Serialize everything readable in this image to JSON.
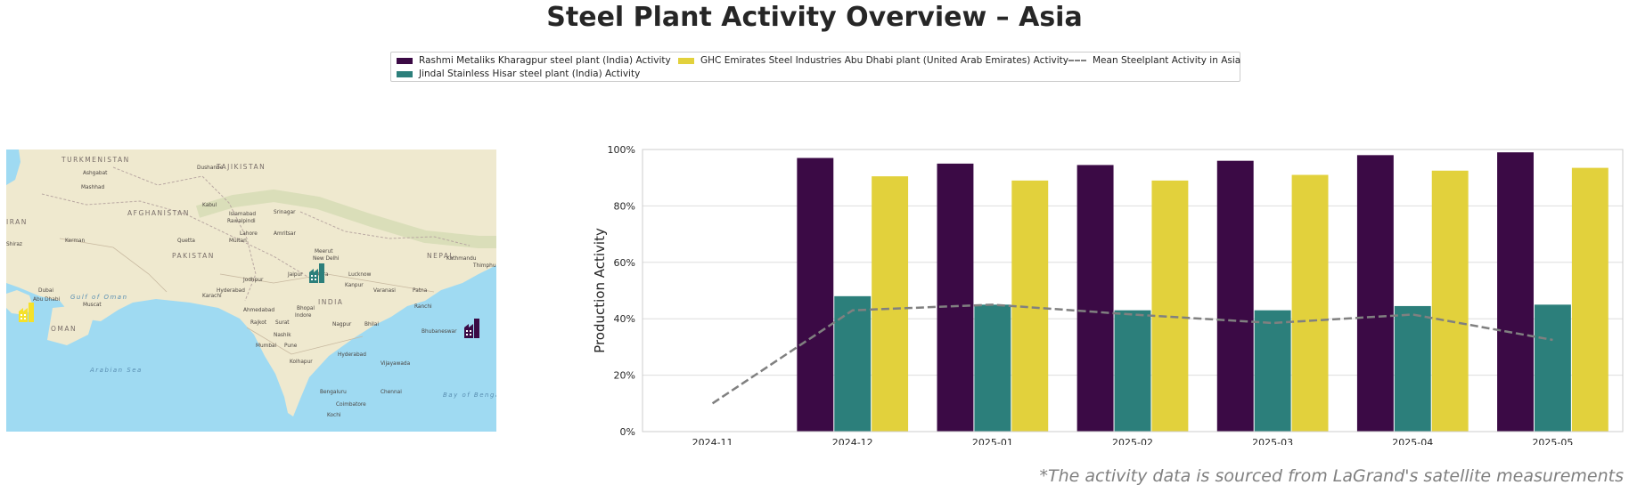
{
  "title": "Steel Plant Activity Overview – Asia",
  "footnote": "*The activity data is sourced from LaGrand's satellite measurements",
  "legend": {
    "items": [
      {
        "label": "Rashmi Metaliks Kharagpur steel plant (India) Activity",
        "color": "#3b0a45"
      },
      {
        "label": "Jindal Stainless Hisar steel plant (India) Activity",
        "color": "#2c7f7b"
      },
      {
        "label": "GHC Emirates Steel Industries Abu Dhabi plant (United Arab Emirates) Activity",
        "color": "#e2d13c"
      },
      {
        "label": "Mean Steelplant Activity in Asia",
        "color": "#808080"
      }
    ]
  },
  "map": {
    "labels": [
      {
        "text": "TURKMENISTAN",
        "kind": "country"
      },
      {
        "text": "Ashgabat",
        "kind": "city"
      },
      {
        "text": "Mashhad",
        "kind": "city"
      },
      {
        "text": "Dushanbe",
        "kind": "city"
      },
      {
        "text": "TAJIKISTAN",
        "kind": "country"
      },
      {
        "text": "AFGHANISTAN",
        "kind": "country"
      },
      {
        "text": "Kabul",
        "kind": "city"
      },
      {
        "text": "Islamabad",
        "kind": "city"
      },
      {
        "text": "Rawalpindi",
        "kind": "city"
      },
      {
        "text": "Srinagar",
        "kind": "city"
      },
      {
        "text": "IRAN",
        "kind": "country"
      },
      {
        "text": "Lahore",
        "kind": "city"
      },
      {
        "text": "Amritsar",
        "kind": "city"
      },
      {
        "text": "Kerman",
        "kind": "city"
      },
      {
        "text": "Quetta",
        "kind": "city"
      },
      {
        "text": "Multan",
        "kind": "city"
      },
      {
        "text": "Shiraz",
        "kind": "city"
      },
      {
        "text": "PAKISTAN",
        "kind": "country"
      },
      {
        "text": "Meerut",
        "kind": "city"
      },
      {
        "text": "New Delhi",
        "kind": "city"
      },
      {
        "text": "NEPAL",
        "kind": "country"
      },
      {
        "text": "Kathmandu",
        "kind": "city"
      },
      {
        "text": "Thimphu",
        "kind": "city"
      },
      {
        "text": "Jaipur",
        "kind": "city"
      },
      {
        "text": "Agra",
        "kind": "city"
      },
      {
        "text": "Lucknow",
        "kind": "city"
      },
      {
        "text": "Jodhpur",
        "kind": "city"
      },
      {
        "text": "Kanpur",
        "kind": "city"
      },
      {
        "text": "Varanasi",
        "kind": "city"
      },
      {
        "text": "Patna",
        "kind": "city"
      },
      {
        "text": "Hyderabad",
        "kind": "city"
      },
      {
        "text": "Karachi",
        "kind": "city"
      },
      {
        "text": "Dubai",
        "kind": "city"
      },
      {
        "text": "Abu Dhabi",
        "kind": "city"
      },
      {
        "text": "Gulf of Oman",
        "kind": "water"
      },
      {
        "text": "Muscat",
        "kind": "city"
      },
      {
        "text": "INDIA",
        "kind": "country"
      },
      {
        "text": "Ahmedabad",
        "kind": "city"
      },
      {
        "text": "Bhopal",
        "kind": "city"
      },
      {
        "text": "Indore",
        "kind": "city"
      },
      {
        "text": "Ranchi",
        "kind": "city"
      },
      {
        "text": "Rajkot",
        "kind": "city"
      },
      {
        "text": "Surat",
        "kind": "city"
      },
      {
        "text": "Nagpur",
        "kind": "city"
      },
      {
        "text": "Bhilai",
        "kind": "city"
      },
      {
        "text": "OMAN",
        "kind": "country"
      },
      {
        "text": "Nashik",
        "kind": "city"
      },
      {
        "text": "Bhubaneswar",
        "kind": "city"
      },
      {
        "text": "Mumbai",
        "kind": "city"
      },
      {
        "text": "Pune",
        "kind": "city"
      },
      {
        "text": "Kolhapur",
        "kind": "city"
      },
      {
        "text": "Hyderabad",
        "kind": "city"
      },
      {
        "text": "Vijayawada",
        "kind": "city"
      },
      {
        "text": "Arabian Sea",
        "kind": "water"
      },
      {
        "text": "Bengaluru",
        "kind": "city"
      },
      {
        "text": "Chennai",
        "kind": "city"
      },
      {
        "text": "Coimbatore",
        "kind": "city"
      },
      {
        "text": "Kochi",
        "kind": "city"
      },
      {
        "text": "Bay of Bengal",
        "kind": "water"
      }
    ],
    "plants": [
      {
        "name": "Jindal Stainless Hisar steel plant (India)",
        "color": "#2c7f7b",
        "icon": "factory-icon"
      },
      {
        "name": "Rashmi Metaliks Kharagpur steel plant (India)",
        "color": "#3b0a45",
        "icon": "factory-icon"
      },
      {
        "name": "GHC Emirates Steel Industries Abu Dhabi plant (United Arab Emirates)",
        "color": "#f5e12a",
        "icon": "factory-icon"
      }
    ],
    "colors": {
      "land": "#efe9cf",
      "sea": "#9fdaf2",
      "border": "#b9a8a2"
    }
  },
  "chart_data": {
    "type": "bar",
    "categories": [
      "2024-11",
      "2024-12",
      "2025-01",
      "2025-02",
      "2025-03",
      "2025-04",
      "2025-05"
    ],
    "series": [
      {
        "name": "Rashmi Metaliks Kharagpur steel plant (India) Activity",
        "color": "#3b0a45",
        "values": [
          null,
          97,
          95,
          94.5,
          96,
          98,
          99
        ]
      },
      {
        "name": "Jindal Stainless Hisar steel plant (India) Activity",
        "color": "#2c7f7b",
        "values": [
          null,
          48,
          45,
          43,
          43,
          44.5,
          45
        ]
      },
      {
        "name": "GHC Emirates Steel Industries Abu Dhabi plant (United Arab Emirates) Activity",
        "color": "#e2d13c",
        "values": [
          null,
          90.5,
          89,
          89,
          91,
          92.5,
          93.5
        ]
      }
    ],
    "mean_line": {
      "name": "Mean Steelplant Activity in Asia",
      "color": "#808080",
      "style": "dashed",
      "values": [
        10,
        43,
        45,
        41.5,
        38.5,
        41.5,
        32.5
      ]
    },
    "ylabel": "Production Activity",
    "xlabel": "",
    "ylim": [
      0,
      100
    ],
    "yticks": [
      "0%",
      "20%",
      "40%",
      "60%",
      "80%",
      "100%"
    ],
    "grid": true,
    "legend_position": "top-center"
  }
}
